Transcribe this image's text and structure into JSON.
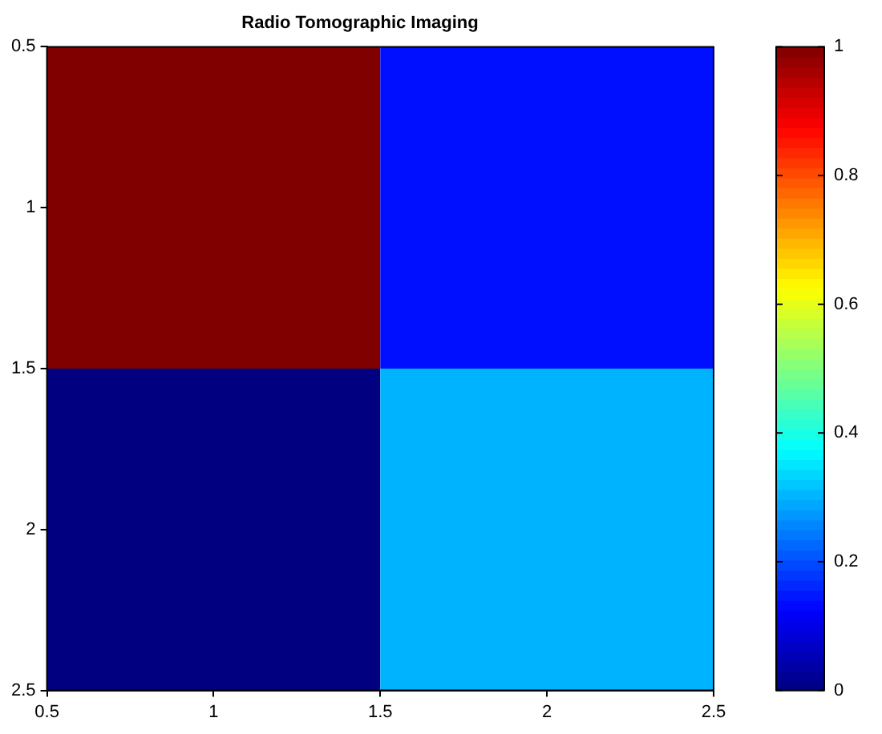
{
  "chart_data": {
    "type": "heatmap",
    "title": "Radio Tomographic Imaging",
    "x": [
      1,
      2
    ],
    "y": [
      1,
      2
    ],
    "cells": [
      [
        1,
        0.14
      ],
      [
        0,
        0.3
      ]
    ],
    "xlim": [
      0.5,
      2.5
    ],
    "xticks": [
      0.5,
      1,
      1.5,
      2,
      2.5
    ],
    "ylim": [
      2.5,
      0.5
    ],
    "yticks": [
      0.5,
      1,
      1.5,
      2,
      2.5
    ],
    "clim": [
      0,
      1
    ],
    "cticks": [
      0,
      0.2,
      0.4,
      0.6,
      0.8,
      1
    ],
    "grid": false
  }
}
